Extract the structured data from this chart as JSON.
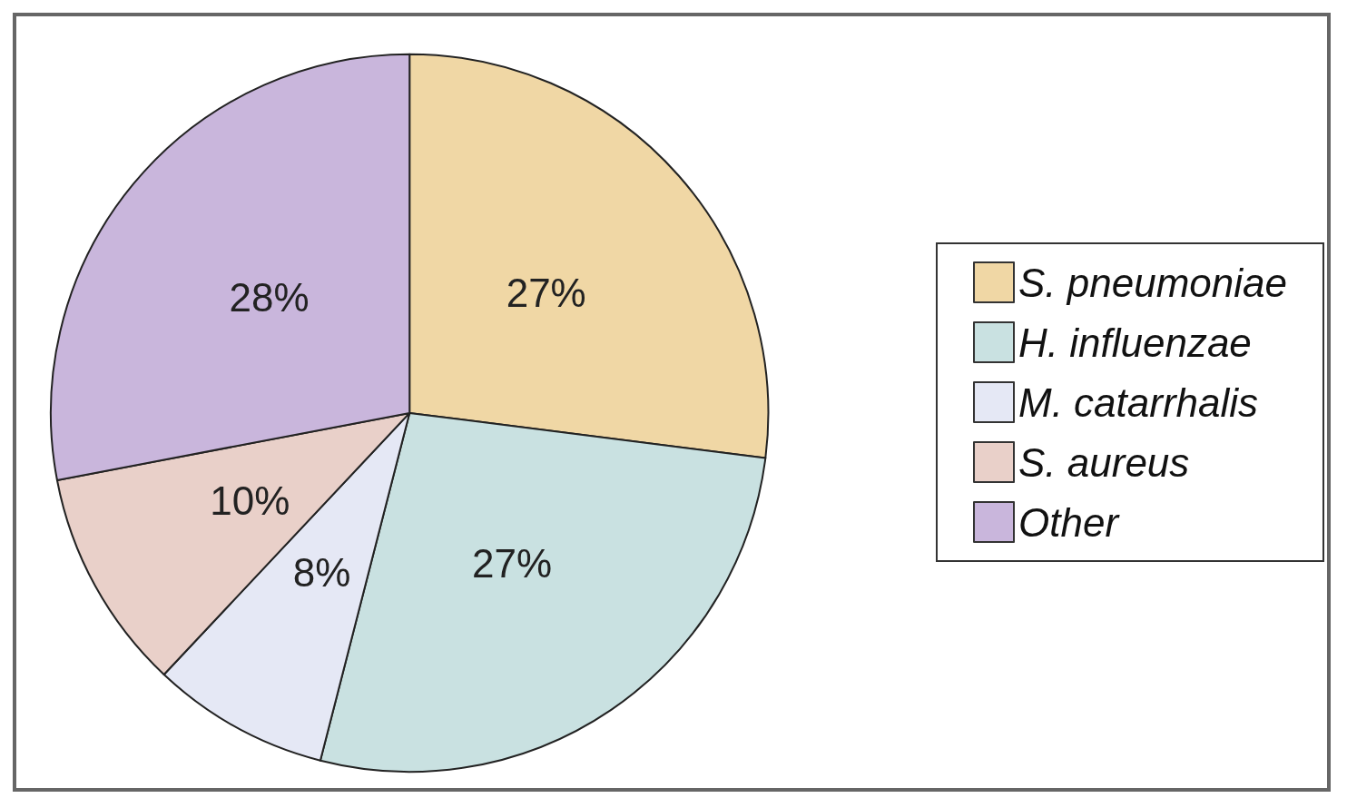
{
  "chart_data": {
    "type": "pie",
    "categories": [
      "S. pneumoniae",
      "H. influenzae",
      "M. catarrhalis",
      "S. aureus",
      "Other"
    ],
    "values": [
      27,
      27,
      8,
      10,
      28
    ],
    "colors": [
      "#f0d7a5",
      "#c9e1e1",
      "#e5e8f5",
      "#e9d0c9",
      "#c9b6dc"
    ],
    "value_labels": [
      "27%",
      "27%",
      "8%",
      "10%",
      "28%"
    ],
    "legend": "right"
  }
}
